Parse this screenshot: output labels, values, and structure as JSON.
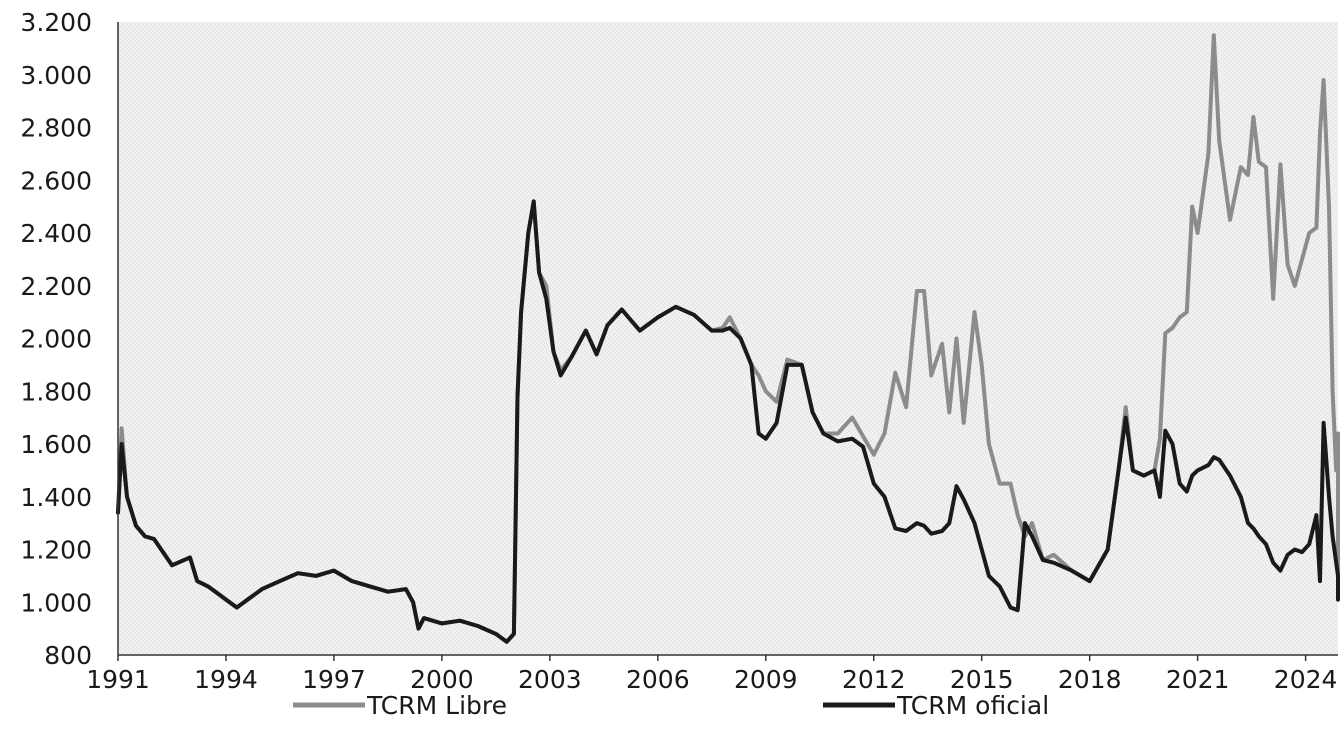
{
  "chart_data": {
    "type": "line",
    "title": "",
    "xlabel": "",
    "ylabel": "",
    "xlim": [
      1991.0,
      2024.9
    ],
    "ylim": [
      800,
      3200
    ],
    "y_ticks": [
      800,
      1000,
      1200,
      1400,
      1600,
      1800,
      2000,
      2200,
      2400,
      2600,
      2800,
      3000,
      3200
    ],
    "y_tick_labels": [
      "800",
      "1.000",
      "1.200",
      "1.400",
      "1.600",
      "1.800",
      "2.000",
      "2.200",
      "2.400",
      "2.600",
      "2.800",
      "3.000",
      "3.200"
    ],
    "x_ticks": [
      1991,
      1994,
      1997,
      2000,
      2003,
      2006,
      2009,
      2012,
      2015,
      2018,
      2021,
      2024
    ],
    "x_tick_labels": [
      "1991",
      "1994",
      "1997",
      "2000",
      "2003",
      "2006",
      "2009",
      "2012",
      "2015",
      "2018",
      "2021",
      "2024"
    ],
    "grid": false,
    "legend_position": "bottom",
    "series": [
      {
        "name": "TCRM Libre",
        "color": "#8c8c8c",
        "points": [
          [
            1991.0,
            1340
          ],
          [
            1991.1,
            1660
          ],
          [
            1991.25,
            1400
          ],
          [
            1991.5,
            1290
          ],
          [
            1991.75,
            1250
          ],
          [
            1992.0,
            1240
          ],
          [
            1992.3,
            1180
          ],
          [
            1992.5,
            1140
          ],
          [
            1993.0,
            1170
          ],
          [
            1993.2,
            1080
          ],
          [
            1993.5,
            1060
          ],
          [
            1993.8,
            1030
          ],
          [
            1994.0,
            1010
          ],
          [
            1994.3,
            980
          ],
          [
            1994.6,
            1010
          ],
          [
            1995.0,
            1050
          ],
          [
            1995.5,
            1080
          ],
          [
            1996.0,
            1110
          ],
          [
            1996.5,
            1100
          ],
          [
            1997.0,
            1120
          ],
          [
            1997.5,
            1080
          ],
          [
            1998.0,
            1060
          ],
          [
            1998.5,
            1040
          ],
          [
            1999.0,
            1050
          ],
          [
            1999.2,
            1000
          ],
          [
            1999.35,
            900
          ],
          [
            1999.5,
            940
          ],
          [
            2000.0,
            920
          ],
          [
            2000.5,
            930
          ],
          [
            2001.0,
            910
          ],
          [
            2001.5,
            880
          ],
          [
            2001.8,
            850
          ],
          [
            2002.0,
            880
          ],
          [
            2002.1,
            1780
          ],
          [
            2002.2,
            2100
          ],
          [
            2002.4,
            2400
          ],
          [
            2002.55,
            2520
          ],
          [
            2002.7,
            2250
          ],
          [
            2002.9,
            2200
          ],
          [
            2003.1,
            1950
          ],
          [
            2003.3,
            1880
          ],
          [
            2003.6,
            1930
          ],
          [
            2004.0,
            2030
          ],
          [
            2004.3,
            1940
          ],
          [
            2004.6,
            2050
          ],
          [
            2005.0,
            2110
          ],
          [
            2005.5,
            2030
          ],
          [
            2006.0,
            2080
          ],
          [
            2006.5,
            2120
          ],
          [
            2007.0,
            2090
          ],
          [
            2007.5,
            2030
          ],
          [
            2007.8,
            2040
          ],
          [
            2008.0,
            2080
          ],
          [
            2008.3,
            2000
          ],
          [
            2008.6,
            1900
          ],
          [
            2008.8,
            1860
          ],
          [
            2009.0,
            1800
          ],
          [
            2009.3,
            1760
          ],
          [
            2009.6,
            1920
          ],
          [
            2010.0,
            1900
          ],
          [
            2010.3,
            1720
          ],
          [
            2010.6,
            1640
          ],
          [
            2011.0,
            1640
          ],
          [
            2011.4,
            1700
          ],
          [
            2011.7,
            1630
          ],
          [
            2012.0,
            1560
          ],
          [
            2012.3,
            1640
          ],
          [
            2012.6,
            1870
          ],
          [
            2012.9,
            1740
          ],
          [
            2013.2,
            2180
          ],
          [
            2013.4,
            2180
          ],
          [
            2013.6,
            1860
          ],
          [
            2013.9,
            1980
          ],
          [
            2014.1,
            1720
          ],
          [
            2014.3,
            2000
          ],
          [
            2014.5,
            1680
          ],
          [
            2014.8,
            2100
          ],
          [
            2015.0,
            1900
          ],
          [
            2015.2,
            1600
          ],
          [
            2015.5,
            1450
          ],
          [
            2015.8,
            1450
          ],
          [
            2016.0,
            1330
          ],
          [
            2016.2,
            1250
          ],
          [
            2016.4,
            1300
          ],
          [
            2016.7,
            1160
          ],
          [
            2017.0,
            1180
          ],
          [
            2017.5,
            1120
          ],
          [
            2018.0,
            1080
          ],
          [
            2018.5,
            1200
          ],
          [
            2018.8,
            1500
          ],
          [
            2019.0,
            1740
          ],
          [
            2019.2,
            1500
          ],
          [
            2019.5,
            1480
          ],
          [
            2019.8,
            1500
          ],
          [
            2019.95,
            1620
          ],
          [
            2020.1,
            2020
          ],
          [
            2020.3,
            2040
          ],
          [
            2020.5,
            2080
          ],
          [
            2020.7,
            2100
          ],
          [
            2020.85,
            2500
          ],
          [
            2021.0,
            2400
          ],
          [
            2021.3,
            2700
          ],
          [
            2021.45,
            3150
          ],
          [
            2021.6,
            2750
          ],
          [
            2021.9,
            2450
          ],
          [
            2022.2,
            2650
          ],
          [
            2022.4,
            2620
          ],
          [
            2022.55,
            2840
          ],
          [
            2022.7,
            2670
          ],
          [
            2022.9,
            2650
          ],
          [
            2023.1,
            2150
          ],
          [
            2023.3,
            2660
          ],
          [
            2023.5,
            2280
          ],
          [
            2023.7,
            2200
          ],
          [
            2023.9,
            2300
          ],
          [
            2024.1,
            2400
          ],
          [
            2024.3,
            2420
          ],
          [
            2024.4,
            2780
          ],
          [
            2024.5,
            2980
          ],
          [
            2024.65,
            2500
          ],
          [
            2024.75,
            1800
          ],
          [
            2024.85,
            1500
          ],
          [
            2024.9,
            1640
          ],
          [
            2024.95,
            1600
          ],
          [
            2025.1,
            1300
          ],
          [
            2025.2,
            1060
          ]
        ]
      },
      {
        "name": "TCRM oficial",
        "color": "#1a1a1a",
        "points": [
          [
            1991.0,
            1340
          ],
          [
            1991.1,
            1600
          ],
          [
            1991.25,
            1400
          ],
          [
            1991.5,
            1290
          ],
          [
            1991.75,
            1250
          ],
          [
            1992.0,
            1240
          ],
          [
            1992.3,
            1180
          ],
          [
            1992.5,
            1140
          ],
          [
            1993.0,
            1170
          ],
          [
            1993.2,
            1080
          ],
          [
            1993.5,
            1060
          ],
          [
            1993.8,
            1030
          ],
          [
            1994.0,
            1010
          ],
          [
            1994.3,
            980
          ],
          [
            1994.6,
            1010
          ],
          [
            1995.0,
            1050
          ],
          [
            1995.5,
            1080
          ],
          [
            1996.0,
            1110
          ],
          [
            1996.5,
            1100
          ],
          [
            1997.0,
            1120
          ],
          [
            1997.5,
            1080
          ],
          [
            1998.0,
            1060
          ],
          [
            1998.5,
            1040
          ],
          [
            1999.0,
            1050
          ],
          [
            1999.2,
            1000
          ],
          [
            1999.35,
            900
          ],
          [
            1999.5,
            940
          ],
          [
            2000.0,
            920
          ],
          [
            2000.5,
            930
          ],
          [
            2001.0,
            910
          ],
          [
            2001.5,
            880
          ],
          [
            2001.8,
            850
          ],
          [
            2002.0,
            880
          ],
          [
            2002.1,
            1780
          ],
          [
            2002.2,
            2100
          ],
          [
            2002.4,
            2400
          ],
          [
            2002.55,
            2520
          ],
          [
            2002.7,
            2250
          ],
          [
            2002.9,
            2150
          ],
          [
            2003.1,
            1950
          ],
          [
            2003.3,
            1860
          ],
          [
            2003.6,
            1930
          ],
          [
            2004.0,
            2030
          ],
          [
            2004.3,
            1940
          ],
          [
            2004.6,
            2050
          ],
          [
            2005.0,
            2110
          ],
          [
            2005.5,
            2030
          ],
          [
            2006.0,
            2080
          ],
          [
            2006.5,
            2120
          ],
          [
            2007.0,
            2090
          ],
          [
            2007.5,
            2030
          ],
          [
            2007.8,
            2030
          ],
          [
            2008.0,
            2040
          ],
          [
            2008.3,
            2000
          ],
          [
            2008.6,
            1900
          ],
          [
            2008.8,
            1640
          ],
          [
            2009.0,
            1620
          ],
          [
            2009.3,
            1680
          ],
          [
            2009.6,
            1900
          ],
          [
            2010.0,
            1900
          ],
          [
            2010.3,
            1720
          ],
          [
            2010.6,
            1640
          ],
          [
            2011.0,
            1610
          ],
          [
            2011.4,
            1620
          ],
          [
            2011.7,
            1590
          ],
          [
            2012.0,
            1450
          ],
          [
            2012.3,
            1400
          ],
          [
            2012.6,
            1280
          ],
          [
            2012.9,
            1270
          ],
          [
            2013.2,
            1300
          ],
          [
            2013.4,
            1290
          ],
          [
            2013.6,
            1260
          ],
          [
            2013.9,
            1270
          ],
          [
            2014.1,
            1300
          ],
          [
            2014.3,
            1440
          ],
          [
            2014.5,
            1390
          ],
          [
            2014.8,
            1300
          ],
          [
            2015.0,
            1200
          ],
          [
            2015.2,
            1100
          ],
          [
            2015.5,
            1060
          ],
          [
            2015.8,
            980
          ],
          [
            2016.0,
            970
          ],
          [
            2016.2,
            1300
          ],
          [
            2016.4,
            1250
          ],
          [
            2016.7,
            1160
          ],
          [
            2017.0,
            1150
          ],
          [
            2017.5,
            1120
          ],
          [
            2018.0,
            1080
          ],
          [
            2018.5,
            1200
          ],
          [
            2018.8,
            1500
          ],
          [
            2019.0,
            1700
          ],
          [
            2019.2,
            1500
          ],
          [
            2019.5,
            1480
          ],
          [
            2019.8,
            1500
          ],
          [
            2019.95,
            1400
          ],
          [
            2020.1,
            1650
          ],
          [
            2020.3,
            1600
          ],
          [
            2020.5,
            1450
          ],
          [
            2020.7,
            1420
          ],
          [
            2020.85,
            1480
          ],
          [
            2021.0,
            1500
          ],
          [
            2021.3,
            1520
          ],
          [
            2021.45,
            1550
          ],
          [
            2021.6,
            1540
          ],
          [
            2021.9,
            1480
          ],
          [
            2022.2,
            1400
          ],
          [
            2022.4,
            1300
          ],
          [
            2022.55,
            1280
          ],
          [
            2022.7,
            1250
          ],
          [
            2022.9,
            1220
          ],
          [
            2023.1,
            1150
          ],
          [
            2023.3,
            1120
          ],
          [
            2023.5,
            1180
          ],
          [
            2023.7,
            1200
          ],
          [
            2023.9,
            1190
          ],
          [
            2024.1,
            1220
          ],
          [
            2024.3,
            1330
          ],
          [
            2024.4,
            1080
          ],
          [
            2024.5,
            1680
          ],
          [
            2024.65,
            1400
          ],
          [
            2024.75,
            1250
          ],
          [
            2024.85,
            1150
          ],
          [
            2024.9,
            1100
          ],
          [
            2024.95,
            1080
          ],
          [
            2025.1,
            1020
          ],
          [
            2025.2,
            1010
          ]
        ]
      }
    ]
  }
}
